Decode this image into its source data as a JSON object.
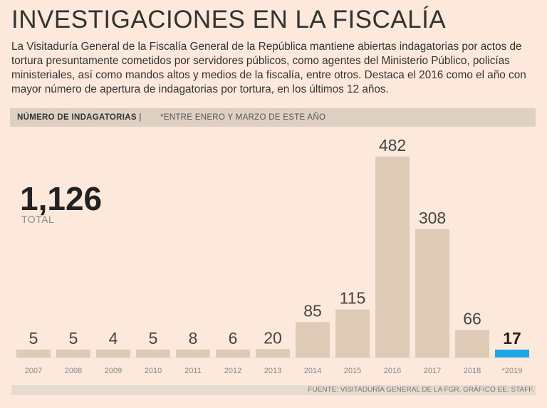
{
  "header": {
    "title": "INVESTIGACIONES EN LA FISCALÍA",
    "intro": "La Visitaduría General de la Fiscalía General de la República mantiene abiertas indagatorias por actos de tortura presuntamente cometidos por servidores públicos, como agentes del Ministerio Público, policías ministeriales, así como mandos altos y medios de la fiscalía, entre otros. Destaca el 2016 como el año con mayor número de apertura de indagatorias por tortura, en los últimos 12 años."
  },
  "band": {
    "label": "NÚMERO DE INDAGATORIAS",
    "separator": "|",
    "note": "*ENTRE ENERO Y MARZO DE ESTE AÑO"
  },
  "total": {
    "value": "1,126",
    "label": "TOTAL"
  },
  "chart_data": {
    "type": "bar",
    "title": "NÚMERO DE INDAGATORIAS",
    "categories": [
      "2007",
      "2008",
      "2009",
      "2010",
      "2011",
      "2012",
      "2013",
      "2014",
      "2015",
      "2016",
      "2017",
      "2018",
      "*2019"
    ],
    "values": [
      5,
      5,
      4,
      5,
      8,
      6,
      20,
      85,
      115,
      482,
      308,
      66,
      17
    ],
    "highlight_index": 12,
    "ylim": [
      0,
      482
    ],
    "colors": {
      "bar": "#ddcbb8",
      "highlight": "#1aa6e8"
    }
  },
  "footer": {
    "source": "FUENTE: VISITADURÍA GENERAL DE LA FGR. GRÁFICO EE: STAFF."
  }
}
